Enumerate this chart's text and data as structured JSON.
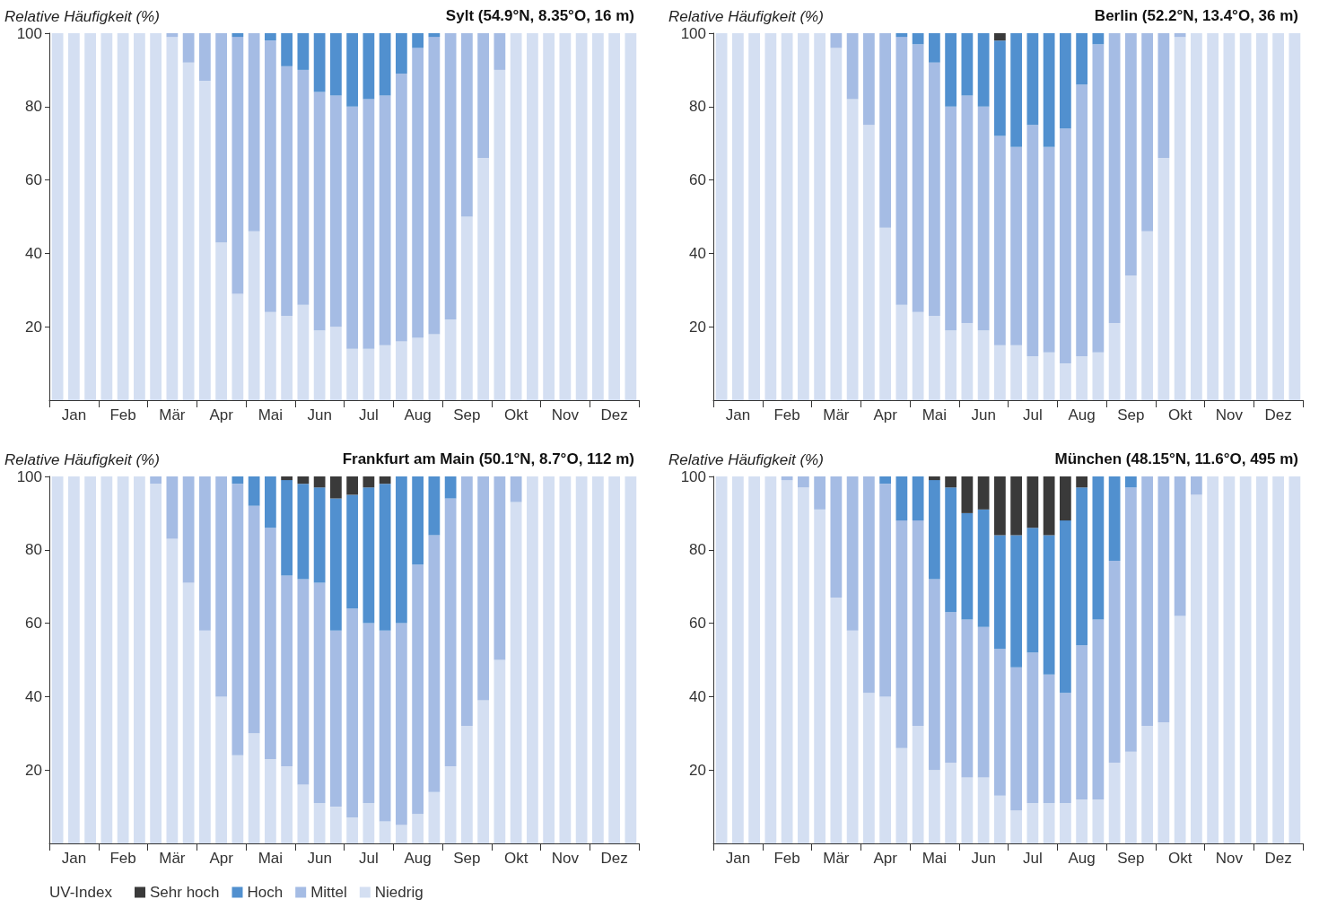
{
  "chart_data": [
    {
      "type": "bar",
      "stacked": true,
      "title": "Sylt (54.9°N, 8.35°O, 16 m)",
      "ylabel": "Relative Häufigkeit (%)",
      "categories": [
        null,
        "Jan",
        null,
        null,
        "Feb",
        null,
        null,
        "Mär",
        null,
        null,
        "Apr",
        null,
        null,
        "Mai",
        null,
        null,
        "Jun",
        null,
        null,
        "Jul",
        null,
        null,
        "Aug",
        null,
        null,
        "Sep",
        null,
        null,
        "Okt",
        null,
        null,
        "Nov",
        null,
        null,
        "Dez",
        null
      ],
      "ylim": [
        0,
        100
      ],
      "yticks": [
        20,
        40,
        60,
        80,
        100
      ],
      "series": [
        {
          "color": "#d4dff2",
          "values": [
            100,
            100,
            100,
            100,
            100,
            100,
            100,
            99,
            92,
            87,
            43,
            29,
            46,
            24,
            23,
            26,
            19,
            20,
            14,
            14,
            15,
            16,
            17,
            18,
            22,
            50,
            66,
            90,
            100,
            100,
            100,
            100,
            100,
            100,
            100,
            100
          ]
        },
        {
          "color": "#a5bce4",
          "values": [
            0,
            0,
            0,
            0,
            0,
            0,
            0,
            1,
            8,
            13,
            57,
            70,
            54,
            74,
            68,
            64,
            65,
            63,
            66,
            68,
            68,
            73,
            79,
            81,
            78,
            50,
            34,
            10,
            0,
            0,
            0,
            0,
            0,
            0,
            0,
            0
          ]
        },
        {
          "color": "#5190cf",
          "values": [
            0,
            0,
            0,
            0,
            0,
            0,
            0,
            0,
            0,
            0,
            0,
            1,
            0,
            2,
            9,
            10,
            16,
            17,
            20,
            18,
            17,
            11,
            4,
            1,
            0,
            0,
            0,
            0,
            0,
            0,
            0,
            0,
            0,
            0,
            0,
            0
          ]
        }
      ]
    },
    {
      "type": "bar",
      "stacked": true,
      "title": "Berlin (52.2°N, 13.4°O, 36 m)",
      "ylabel": "Relative Häufigkeit (%)",
      "categories": [
        null,
        "Jan",
        null,
        null,
        "Feb",
        null,
        null,
        "Mär",
        null,
        null,
        "Apr",
        null,
        null,
        "Mai",
        null,
        null,
        "Jun",
        null,
        null,
        "Jul",
        null,
        null,
        "Aug",
        null,
        null,
        "Sep",
        null,
        null,
        "Okt",
        null,
        null,
        "Nov",
        null,
        null,
        "Dez",
        null
      ],
      "ylim": [
        0,
        100
      ],
      "yticks": [
        20,
        40,
        60,
        80,
        100
      ],
      "series": [
        {
          "color": "#d4dff2",
          "values": [
            100,
            100,
            100,
            100,
            100,
            100,
            100,
            96,
            82,
            75,
            47,
            26,
            24,
            23,
            19,
            21,
            19,
            15,
            15,
            12,
            13,
            10,
            12,
            13,
            21,
            34,
            46,
            66,
            99,
            100,
            100,
            100,
            100,
            100,
            100,
            100
          ]
        },
        {
          "color": "#a5bce4",
          "values": [
            0,
            0,
            0,
            0,
            0,
            0,
            0,
            4,
            18,
            25,
            53,
            73,
            73,
            69,
            61,
            62,
            61,
            57,
            54,
            63,
            56,
            64,
            74,
            84,
            79,
            66,
            54,
            34,
            1,
            0,
            0,
            0,
            0,
            0,
            0,
            0
          ]
        },
        {
          "color": "#5190cf",
          "values": [
            0,
            0,
            0,
            0,
            0,
            0,
            0,
            0,
            0,
            0,
            0,
            1,
            3,
            8,
            20,
            17,
            20,
            26,
            31,
            25,
            31,
            26,
            14,
            3,
            0,
            0,
            0,
            0,
            0,
            0,
            0,
            0,
            0,
            0,
            0,
            0
          ]
        },
        {
          "color": "#3a3a3a",
          "values": [
            0,
            0,
            0,
            0,
            0,
            0,
            0,
            0,
            0,
            0,
            0,
            0,
            0,
            0,
            0,
            0,
            0,
            2,
            0,
            0,
            0,
            0,
            0,
            0,
            0,
            0,
            0,
            0,
            0,
            0,
            0,
            0,
            0,
            0,
            0,
            0
          ]
        }
      ]
    },
    {
      "type": "bar",
      "stacked": true,
      "title": "Frankfurt am Main (50.1°N, 8.7°O, 112 m)",
      "ylabel": "Relative Häufigkeit (%)",
      "legend": "bottom left",
      "legend_title": "UV-Index",
      "categories": [
        null,
        "Jan",
        null,
        null,
        "Feb",
        null,
        null,
        "Mär",
        null,
        null,
        "Apr",
        null,
        null,
        "Mai",
        null,
        null,
        "Jun",
        null,
        null,
        "Jul",
        null,
        null,
        "Aug",
        null,
        null,
        "Sep",
        null,
        null,
        "Okt",
        null,
        null,
        "Nov",
        null,
        null,
        "Dez",
        null
      ],
      "ylim": [
        0,
        100
      ],
      "yticks": [
        20,
        40,
        60,
        80,
        100
      ],
      "series": [
        {
          "name": "Niedrig",
          "color": "#d4dff2",
          "values": [
            100,
            100,
            100,
            100,
            100,
            100,
            98,
            83,
            71,
            58,
            40,
            24,
            30,
            23,
            21,
            16,
            11,
            10,
            7,
            11,
            6,
            5,
            8,
            14,
            21,
            32,
            39,
            50,
            93,
            100,
            100,
            100,
            100,
            100,
            100,
            100
          ]
        },
        {
          "name": "Mittel",
          "color": "#a5bce4",
          "values": [
            0,
            0,
            0,
            0,
            0,
            0,
            2,
            17,
            29,
            42,
            60,
            74,
            62,
            63,
            52,
            56,
            60,
            48,
            57,
            49,
            52,
            55,
            68,
            70,
            73,
            68,
            61,
            50,
            7,
            0,
            0,
            0,
            0,
            0,
            0,
            0
          ]
        },
        {
          "name": "Hoch",
          "color": "#5190cf",
          "values": [
            0,
            0,
            0,
            0,
            0,
            0,
            0,
            0,
            0,
            0,
            0,
            2,
            8,
            14,
            26,
            26,
            26,
            36,
            31,
            37,
            40,
            40,
            24,
            16,
            6,
            0,
            0,
            0,
            0,
            0,
            0,
            0,
            0,
            0,
            0,
            0
          ]
        },
        {
          "name": "Sehr hoch",
          "color": "#3a3a3a",
          "values": [
            0,
            0,
            0,
            0,
            0,
            0,
            0,
            0,
            0,
            0,
            0,
            0,
            0,
            0,
            1,
            2,
            3,
            6,
            5,
            3,
            2,
            0,
            0,
            0,
            0,
            0,
            0,
            0,
            0,
            0,
            0,
            0,
            0,
            0,
            0,
            0
          ]
        }
      ]
    },
    {
      "type": "bar",
      "stacked": true,
      "title": "München (48.15°N, 11.6°O, 495 m)",
      "ylabel": "Relative Häufigkeit (%)",
      "categories": [
        null,
        "Jan",
        null,
        null,
        "Feb",
        null,
        null,
        "Mär",
        null,
        null,
        "Apr",
        null,
        null,
        "Mai",
        null,
        null,
        "Jun",
        null,
        null,
        "Jul",
        null,
        null,
        "Aug",
        null,
        null,
        "Sep",
        null,
        null,
        "Okt",
        null,
        null,
        "Nov",
        null,
        null,
        "Dez",
        null
      ],
      "ylim": [
        0,
        100
      ],
      "yticks": [
        20,
        40,
        60,
        80,
        100
      ],
      "series": [
        {
          "color": "#d4dff2",
          "values": [
            100,
            100,
            100,
            100,
            99,
            97,
            91,
            67,
            58,
            41,
            40,
            26,
            32,
            20,
            22,
            18,
            18,
            13,
            9,
            11,
            11,
            11,
            12,
            12,
            22,
            25,
            32,
            33,
            62,
            95,
            100,
            100,
            100,
            100,
            100,
            100
          ]
        },
        {
          "color": "#a5bce4",
          "values": [
            0,
            0,
            0,
            0,
            1,
            3,
            9,
            33,
            42,
            59,
            58,
            62,
            56,
            52,
            41,
            43,
            41,
            40,
            39,
            41,
            35,
            30,
            42,
            49,
            55,
            72,
            68,
            67,
            38,
            5,
            0,
            0,
            0,
            0,
            0,
            0
          ]
        },
        {
          "color": "#5190cf",
          "values": [
            0,
            0,
            0,
            0,
            0,
            0,
            0,
            0,
            0,
            0,
            2,
            12,
            12,
            27,
            34,
            29,
            32,
            31,
            36,
            34,
            38,
            47,
            43,
            39,
            23,
            3,
            0,
            0,
            0,
            0,
            0,
            0,
            0,
            0,
            0,
            0
          ]
        },
        {
          "color": "#3a3a3a",
          "values": [
            0,
            0,
            0,
            0,
            0,
            0,
            0,
            0,
            0,
            0,
            0,
            0,
            0,
            1,
            3,
            10,
            9,
            16,
            16,
            14,
            16,
            12,
            3,
            0,
            0,
            0,
            0,
            0,
            0,
            0,
            0,
            0,
            0,
            0,
            0,
            0
          ]
        }
      ]
    }
  ]
}
